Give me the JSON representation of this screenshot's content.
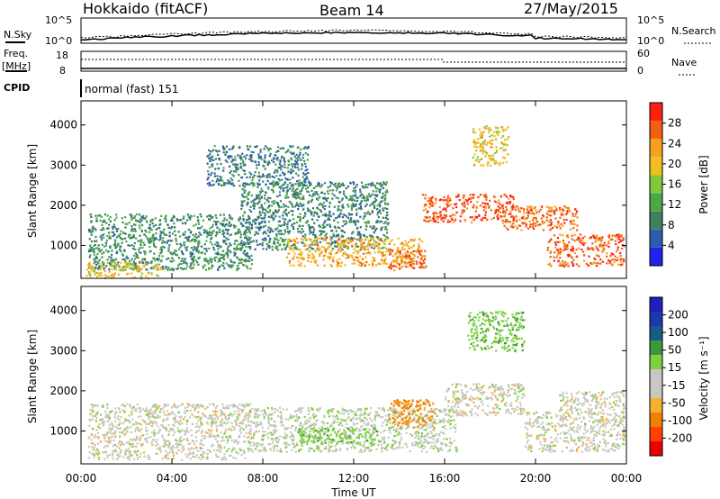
{
  "header": {
    "station": "Hokkaido (fitACF)",
    "beam": "Beam 14",
    "date": "27/May/2015"
  },
  "top_panels": {
    "nsky_label": "N.Sky",
    "nsearch_label": "N.Search",
    "noise_ticks": [
      "10^5",
      "10^0"
    ],
    "freq_label": "Freq.",
    "freq_unit": "[MHz]",
    "freq_ticks": [
      "18",
      "8"
    ],
    "nave_label": "Nave",
    "nave_ticks": [
      "60",
      "0"
    ],
    "cpid_label": "CPID",
    "cpid_value": "normal (fast) 151"
  },
  "colors": {
    "power_scale": [
      "#2222ee",
      "#2a5db0",
      "#3f7f5f",
      "#4aa84a",
      "#7fc93a",
      "#f0c020",
      "#f5a020",
      "#f06010",
      "#ff2010"
    ],
    "velocity_scale": [
      "#ee0000",
      "#ff4000",
      "#f08000",
      "#f5b030",
      "#c8c8c0",
      "#c8c8c0",
      "#7fd040",
      "#3a9a3a",
      "#1a5a8a",
      "#1a3aaa",
      "#1f1fbf"
    ]
  },
  "chart_data": [
    {
      "type": "heatmap",
      "panel": "power",
      "xlabel": "",
      "ylabel": "Slant Range [km]",
      "x_ticks": [
        "00:00",
        "04:00",
        "08:00",
        "12:00",
        "16:00",
        "20:00",
        "00:00"
      ],
      "y_ticks": [
        "1000",
        "2000",
        "3000",
        "4000"
      ],
      "ylim_km": [
        180,
        4600
      ],
      "colorbar": {
        "label": "Power [dB]",
        "ticks": [
          "4",
          "8",
          "12",
          "16",
          "20",
          "24",
          "28"
        ]
      },
      "regions": [
        {
          "t0": 0.3,
          "t1": 7.5,
          "r0": 400,
          "r1": 1800,
          "db": 10
        },
        {
          "t0": 0.2,
          "t1": 3.5,
          "r0": 200,
          "r1": 600,
          "db": 20
        },
        {
          "t0": 5.5,
          "t1": 10.0,
          "r0": 2500,
          "r1": 3500,
          "db": 8
        },
        {
          "t0": 7.0,
          "t1": 13.5,
          "r0": 900,
          "r1": 2600,
          "db": 9
        },
        {
          "t0": 9.0,
          "t1": 15.0,
          "r0": 500,
          "r1": 1200,
          "db": 22
        },
        {
          "t0": 13.5,
          "t1": 15.2,
          "r0": 400,
          "r1": 900,
          "db": 26
        },
        {
          "t0": 15.0,
          "t1": 19.0,
          "r0": 1600,
          "r1": 2300,
          "db": 27
        },
        {
          "t0": 17.2,
          "t1": 18.8,
          "r0": 3000,
          "r1": 4000,
          "db": 20
        },
        {
          "t0": 18.5,
          "t1": 21.8,
          "r0": 1400,
          "r1": 2000,
          "db": 26
        },
        {
          "t0": 20.5,
          "t1": 23.9,
          "r0": 500,
          "r1": 1300,
          "db": 27
        }
      ]
    },
    {
      "type": "heatmap",
      "panel": "velocity",
      "xlabel": "Time UT",
      "ylabel": "Slant Range [km]",
      "x_ticks": [
        "00:00",
        "04:00",
        "08:00",
        "12:00",
        "16:00",
        "20:00",
        "00:00"
      ],
      "y_ticks": [
        "1000",
        "2000",
        "3000",
        "4000"
      ],
      "ylim_km": [
        180,
        4600
      ],
      "colorbar": {
        "label": "Velocity [m s⁻¹]",
        "ticks": [
          "-200",
          "-100",
          "-50",
          "-15",
          "15",
          "50",
          "100",
          "200"
        ]
      },
      "regions": [
        {
          "t0": 0.3,
          "t1": 7.5,
          "r0": 300,
          "r1": 1700,
          "v": 0
        },
        {
          "t0": 7.5,
          "t1": 16.5,
          "r0": 500,
          "r1": 1600,
          "v": 5
        },
        {
          "t0": 9.5,
          "t1": 13.0,
          "r0": 700,
          "r1": 1100,
          "v": 40
        },
        {
          "t0": 13.5,
          "t1": 15.5,
          "r0": 1100,
          "r1": 1800,
          "v": -60
        },
        {
          "t0": 16.0,
          "t1": 19.5,
          "r0": 1400,
          "r1": 2200,
          "v": 0
        },
        {
          "t0": 17.0,
          "t1": 19.5,
          "r0": 3000,
          "r1": 4000,
          "v": 40
        },
        {
          "t0": 19.5,
          "t1": 23.9,
          "r0": 500,
          "r1": 1500,
          "v": 0
        },
        {
          "t0": 21.0,
          "t1": 23.9,
          "r0": 1500,
          "r1": 2000,
          "v": 0
        }
      ]
    }
  ]
}
